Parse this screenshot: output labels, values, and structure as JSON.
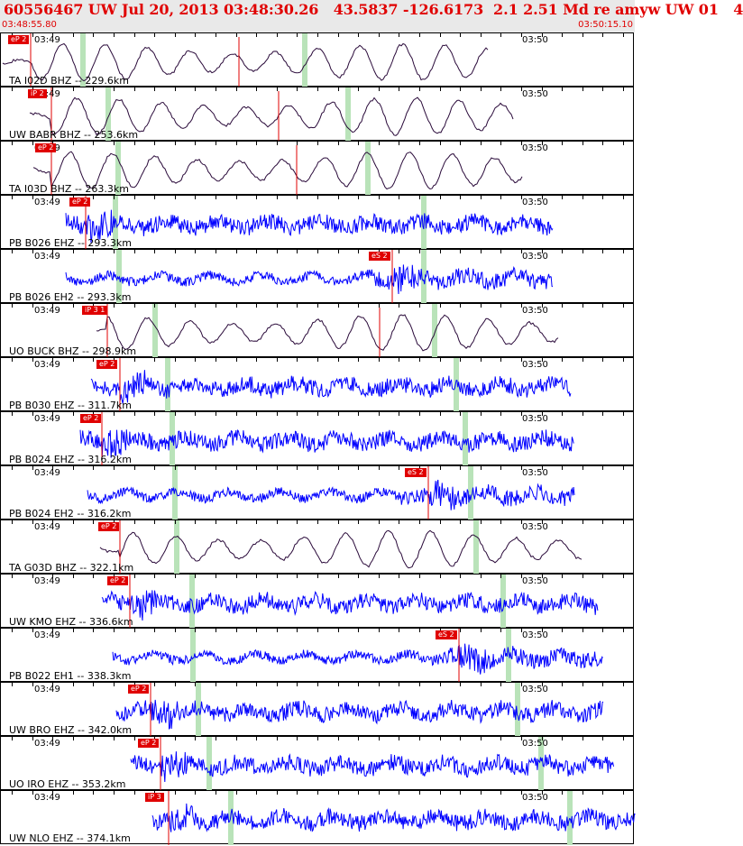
{
  "header": {
    "title": "60556467 UW Jul 20, 2013 03:48:30.26   43.5837 -126.6173  2.1 2.51 Md re amyw UW 01   4",
    "start_time": "03:48:55.80",
    "end_time": "03:50:15.10"
  },
  "time_labels": {
    "first": "03:49",
    "second": "03:50"
  },
  "colors": {
    "title": "#e00000",
    "pick": "#e00000",
    "trace_broadband": "#2a0a3a",
    "trace_short": "#0000ff",
    "marker": "#b9e3b9"
  },
  "channels": [
    {
      "label": "TA I02D BHZ -- 229.6km",
      "pick": "eP 2",
      "type": "broadband"
    },
    {
      "label": "UW BABR BHZ -- 253.6km",
      "pick": "iP 2",
      "type": "broadband"
    },
    {
      "label": "TA I03D BHZ -- 263.3km",
      "pick": "eP 2",
      "type": "broadband"
    },
    {
      "label": "PB B026 EHZ -- 293.3km",
      "pick": "eP 2",
      "type": "short"
    },
    {
      "label": "PB B026 EH2 -- 293.3km",
      "pick": "eS 2",
      "type": "short"
    },
    {
      "label": "UO BUCK BHZ -- 298.9km",
      "pick": "iP 3 1",
      "type": "broadband"
    },
    {
      "label": "PB B030 EHZ -- 311.7km",
      "pick": "eP 2",
      "type": "short"
    },
    {
      "label": "PB B024 EHZ -- 316.2km",
      "pick": "eP 2",
      "type": "short"
    },
    {
      "label": "PB B024 EH2 -- 316.2km",
      "pick": "eS 2",
      "type": "short"
    },
    {
      "label": "TA G03D BHZ -- 322.1km",
      "pick": "eP 2",
      "type": "broadband"
    },
    {
      "label": "UW KMO EHZ -- 336.6km",
      "pick": "eP 2",
      "type": "short"
    },
    {
      "label": "PB B022 EH1 -- 338.3km",
      "pick": "eS 2",
      "type": "short"
    },
    {
      "label": "UW BRO EHZ -- 342.0km",
      "pick": "eP 2",
      "type": "short"
    },
    {
      "label": "UO IRO EHZ -- 353.2km",
      "pick": "eP 2",
      "type": "short"
    },
    {
      "label": "UW NLO EHZ -- 374.1km",
      "pick": "iP 3",
      "type": "short"
    }
  ]
}
